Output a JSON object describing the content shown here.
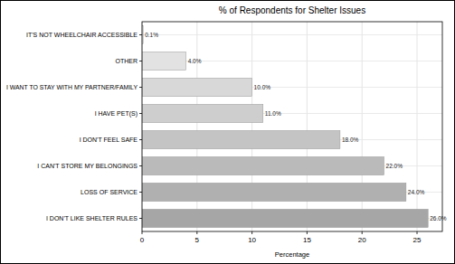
{
  "chart_data": {
    "type": "bar",
    "orientation": "horizontal",
    "title": "% of Respondents for Shelter Issues",
    "x_label": "Percentage",
    "categories": [
      "IT'S NOT WHEELCHAIR ACCESSIBLE",
      "OTHER",
      "I WANT TO STAY WITH MY PARTNER/FAMILY",
      "I HAVE PET(S)",
      "I DON'T FEEL SAFE",
      "I CAN'T STORE MY BELONGINGS",
      "LOSS OF SERVICE",
      "I DON'T LIKE SHELTER RULES"
    ],
    "values": [
      0.1,
      4,
      10,
      11,
      18,
      22,
      24,
      26
    ],
    "value_labels": [
      "0.1%",
      "4.0%",
      "10.0%",
      "11.0%",
      "18.0%",
      "22.0%",
      "24.0%",
      "26.0%"
    ],
    "colors": [
      "#efefef",
      "#e2e2e2",
      "#d8d8d8",
      "#cecece",
      "#c4c4c4",
      "#bababa",
      "#b0b0b0",
      "#a6a6a6"
    ],
    "xlim": [
      0,
      27.3
    ],
    "xticks": [
      0,
      5,
      10,
      15,
      20,
      25
    ],
    "grid": true,
    "data_labels": true
  }
}
